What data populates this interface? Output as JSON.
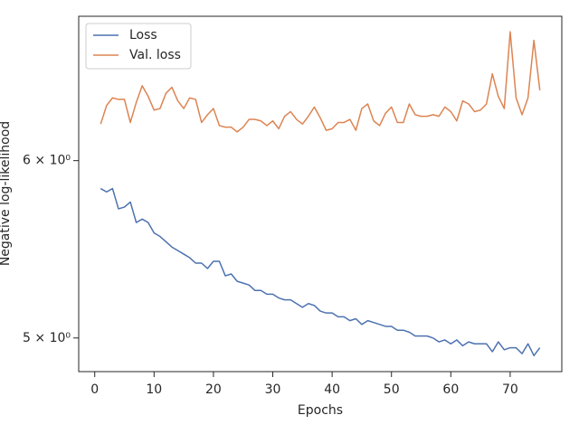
{
  "chart_data": {
    "type": "line",
    "xlabel": "Epochs",
    "ylabel": "Negative log-likelihood",
    "x": [
      1,
      2,
      3,
      4,
      5,
      6,
      7,
      8,
      9,
      10,
      11,
      12,
      13,
      14,
      15,
      16,
      17,
      18,
      19,
      20,
      21,
      22,
      23,
      24,
      25,
      26,
      27,
      28,
      29,
      30,
      31,
      32,
      33,
      34,
      35,
      36,
      37,
      38,
      39,
      40,
      41,
      42,
      43,
      44,
      45,
      46,
      47,
      48,
      49,
      50,
      51,
      52,
      53,
      54,
      55,
      56,
      57,
      58,
      59,
      60,
      61,
      62,
      63,
      64,
      65,
      66,
      67,
      68,
      69,
      70,
      71,
      72,
      73,
      74,
      75
    ],
    "series": [
      {
        "name": "Loss",
        "color": "#4c72b0",
        "values": [
          5.83,
          5.81,
          5.83,
          5.71,
          5.72,
          5.75,
          5.63,
          5.65,
          5.63,
          5.57,
          5.55,
          5.52,
          5.49,
          5.47,
          5.45,
          5.43,
          5.4,
          5.4,
          5.37,
          5.41,
          5.41,
          5.33,
          5.34,
          5.3,
          5.29,
          5.28,
          5.25,
          5.25,
          5.23,
          5.23,
          5.21,
          5.2,
          5.2,
          5.18,
          5.16,
          5.18,
          5.17,
          5.14,
          5.13,
          5.13,
          5.11,
          5.11,
          5.09,
          5.1,
          5.07,
          5.09,
          5.08,
          5.07,
          5.06,
          5.06,
          5.04,
          5.04,
          5.03,
          5.01,
          5.01,
          5.01,
          5.0,
          4.98,
          4.99,
          4.97,
          4.99,
          4.96,
          4.98,
          4.97,
          4.97,
          4.97,
          4.93,
          4.98,
          4.94,
          4.95,
          4.95,
          4.92,
          4.97,
          4.91,
          4.95
        ]
      },
      {
        "name": "Val. loss",
        "color": "#dd8452",
        "values": [
          6.23,
          6.35,
          6.4,
          6.39,
          6.39,
          6.24,
          6.37,
          6.48,
          6.41,
          6.32,
          6.33,
          6.43,
          6.47,
          6.38,
          6.33,
          6.4,
          6.39,
          6.24,
          6.29,
          6.33,
          6.22,
          6.21,
          6.21,
          6.18,
          6.21,
          6.26,
          6.26,
          6.25,
          6.22,
          6.25,
          6.2,
          6.28,
          6.31,
          6.26,
          6.23,
          6.28,
          6.34,
          6.27,
          6.19,
          6.2,
          6.24,
          6.24,
          6.26,
          6.19,
          6.33,
          6.36,
          6.25,
          6.22,
          6.3,
          6.34,
          6.24,
          6.24,
          6.36,
          6.29,
          6.28,
          6.28,
          6.29,
          6.28,
          6.34,
          6.31,
          6.25,
          6.38,
          6.36,
          6.31,
          6.32,
          6.36,
          6.56,
          6.41,
          6.33,
          6.85,
          6.4,
          6.29,
          6.4,
          6.79,
          6.45
        ]
      }
    ],
    "xlim": [
      -2.7,
      78.7
    ],
    "xticks": [
      0,
      10,
      20,
      30,
      40,
      50,
      60,
      70
    ],
    "ylim": [
      4.83,
      6.96
    ],
    "ylog": true,
    "yticks": [
      {
        "value": 5,
        "label": "5 × 10⁰"
      },
      {
        "value": 6,
        "label": "6 × 10⁰"
      }
    ],
    "grid": false,
    "legend": "upper left"
  }
}
